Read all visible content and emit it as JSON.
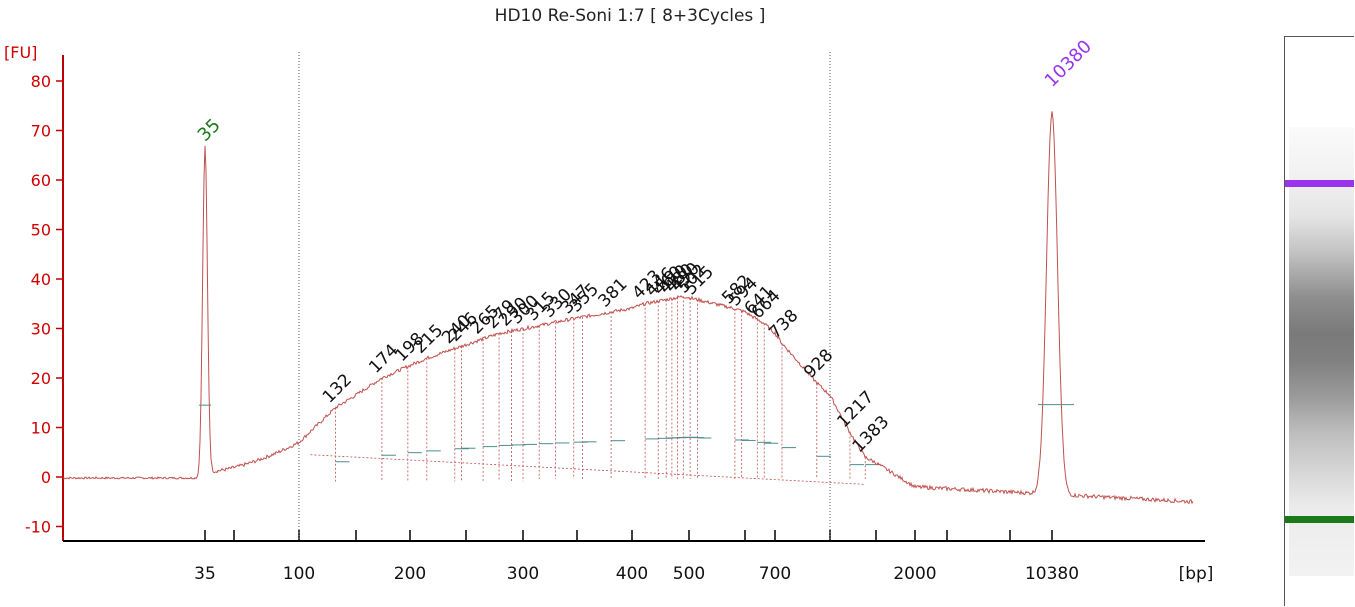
{
  "chart_data": {
    "type": "line",
    "title": "HD10 Re-Soni 1:7  [ 8+3Cycles ]",
    "ylabel": "[FU]",
    "xlabel": "[bp]",
    "ylim": [
      -13,
      85
    ],
    "yticks": [
      -10,
      0,
      10,
      20,
      30,
      40,
      50,
      60,
      70,
      80
    ],
    "x_tick_labels": [
      "35",
      "100",
      "200",
      "300",
      "400",
      "500",
      "700",
      "2000",
      "10380"
    ],
    "markers": [
      {
        "label": "35",
        "bp": 35,
        "peak_fu": 66,
        "color": "#1a7a1a"
      },
      {
        "label": "10380",
        "bp": 10380,
        "peak_fu": 77,
        "color": "#9933ee"
      }
    ],
    "peak_labels": [
      "132",
      "174",
      "198",
      "215",
      "240",
      "246",
      "265",
      "279",
      "290",
      "300",
      "315",
      "330",
      "347",
      "355",
      "381",
      "423",
      "446",
      "460",
      "470",
      "480",
      "490",
      "502",
      "515",
      "582",
      "594",
      "641",
      "664",
      "738",
      "928",
      "1217",
      "1383"
    ],
    "smear_profile_bp": [
      100,
      132,
      174,
      215,
      279,
      347,
      423,
      490,
      582,
      664,
      738,
      928,
      1217,
      1383,
      2000
    ],
    "smear_profile_fu": [
      7,
      14,
      20,
      24,
      29,
      32,
      35,
      36.5,
      34,
      31,
      27,
      19,
      9,
      4,
      -2
    ],
    "baseline_end_fu": -5,
    "colors": {
      "trace": "#c0504d",
      "axis": "#c00000",
      "axis_text": "#d00000",
      "baseline_marks": "#4d8c8c"
    }
  },
  "gel": {
    "upper_marker_color": "#9933ee",
    "lower_marker_color": "#1a7a1a"
  }
}
